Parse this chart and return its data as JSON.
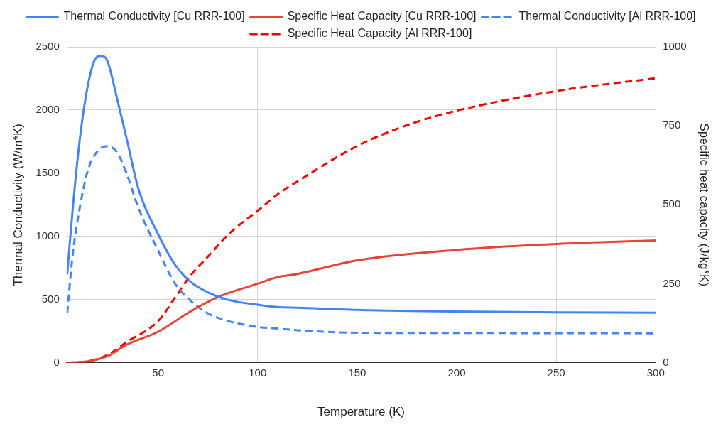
{
  "chart_data": {
    "type": "line",
    "xlabel": "Temperature (K)",
    "ylabel": "Thermal Conductivity (W/m*K)",
    "y2label": "Specific heat capacity (J/kg*K)",
    "xlim": [
      4,
      300
    ],
    "xticks": [
      50,
      100,
      150,
      200,
      250,
      300
    ],
    "ylim": [
      0,
      2500
    ],
    "yticks": [
      0,
      500,
      1000,
      1500,
      2000,
      2500
    ],
    "y2lim": [
      0,
      1000
    ],
    "y2ticks": [
      0,
      250,
      500,
      750,
      1000
    ],
    "grid": true,
    "legend": "top",
    "series": [
      {
        "name": "Thermal Conductivity [Cu RRR-100]",
        "color": "#4285f4",
        "line_style": "solid",
        "x": [
          4.3,
          7.3,
          11,
          14.6,
          18.3,
          21.3,
          24.4,
          29.3,
          34.1,
          40.2,
          50,
          58.5,
          65.9,
          75.6,
          85.4,
          100,
          110,
          120,
          150,
          200,
          250,
          300
        ],
        "values": [
          700,
          1258,
          1816,
          2188,
          2401,
          2429,
          2392,
          2095,
          1779,
          1370,
          1017,
          775,
          645,
          552,
          496,
          459,
          440,
          435,
          418,
          405,
          399,
          395
        ]
      },
      {
        "name": "Specific Heat Capacity [Cu RRR-100]",
        "color": "#ea4335",
        "line_style": "solid",
        "axis": "y2",
        "x": [
          4.3,
          14.6,
          24.4,
          34.1,
          50,
          65.9,
          80.5,
          100,
          110,
          120,
          150,
          200,
          250,
          300
        ],
        "values": [
          0,
          4,
          20,
          57,
          98,
          161,
          209,
          250,
          271,
          281,
          324,
          357,
          376,
          387
        ]
      },
      {
        "name": "Thermal Conductivity [Al RRR-100]",
        "color": "#4285f4",
        "line_style": "dashed",
        "x": [
          4.3,
          7.3,
          11,
          14.6,
          18.3,
          24.4,
          29.3,
          34.1,
          40.2,
          50,
          58.5,
          65.9,
          75.6,
          85.4,
          100,
          110,
          120,
          150,
          200,
          300
        ],
        "values": [
          394,
          887,
          1258,
          1519,
          1649,
          1714,
          1667,
          1500,
          1221,
          887,
          626,
          496,
          385,
          329,
          283,
          270,
          257,
          237,
          235,
          233
        ]
      },
      {
        "name": "Specific Heat Capacity [Al RRR-100]",
        "color": "#ff0000",
        "line_style": "dashed",
        "axis": "y2",
        "x": [
          4.3,
          14.6,
          24.4,
          34.1,
          50,
          58.5,
          65.9,
          75.6,
          85.4,
          100,
          110,
          120,
          150,
          175,
          200,
          250,
          300
        ],
        "values": [
          0,
          4,
          24,
          65,
          132,
          206,
          273,
          340,
          407,
          481,
          533,
          574,
          686,
          752,
          798,
          860,
          901
        ]
      }
    ]
  }
}
